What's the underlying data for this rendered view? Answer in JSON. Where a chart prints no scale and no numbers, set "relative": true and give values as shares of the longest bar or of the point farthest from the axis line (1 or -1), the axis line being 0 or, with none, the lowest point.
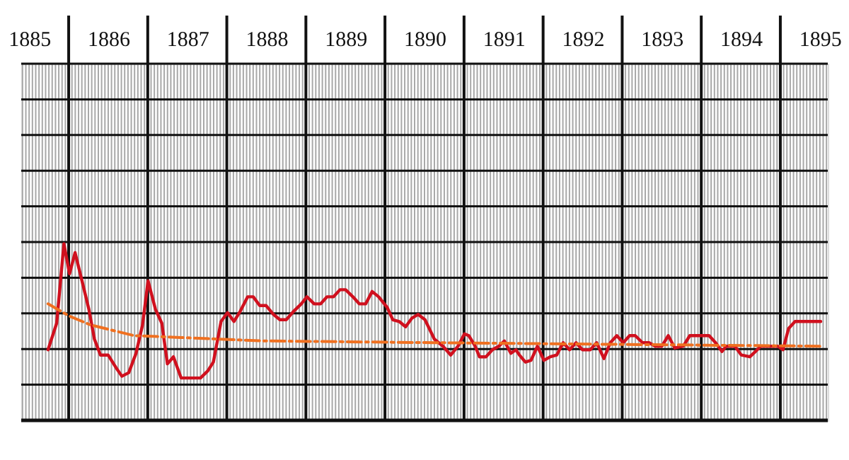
{
  "chart_data": {
    "type": "line",
    "relative": true,
    "grid": true,
    "marker": "none",
    "tick_labels": "x",
    "xlim": [
      1885.4,
      1895.6
    ],
    "xticks": [
      {
        "value": 1885.5,
        "label": "1885"
      },
      {
        "value": 1886.5,
        "label": "1886"
      },
      {
        "value": 1887.5,
        "label": "1887"
      },
      {
        "value": 1888.5,
        "label": "1888"
      },
      {
        "value": 1889.5,
        "label": "1889"
      },
      {
        "value": 1890.5,
        "label": "1890"
      },
      {
        "value": 1891.5,
        "label": "1891"
      },
      {
        "value": 1892.5,
        "label": "1892"
      },
      {
        "value": 1893.5,
        "label": "1893"
      },
      {
        "value": 1894.5,
        "label": "1894"
      },
      {
        "value": 1895.5,
        "label": "1895"
      },
      {
        "value": 1886,
        "label": null
      },
      {
        "value": 1887,
        "label": null
      },
      {
        "value": 1888,
        "label": null
      },
      {
        "value": 1889,
        "label": null
      },
      {
        "value": 1890,
        "label": null
      },
      {
        "value": 1891,
        "label": null
      },
      {
        "value": 1892,
        "label": null
      },
      {
        "value": 1893,
        "label": null
      },
      {
        "value": 1894,
        "label": null
      },
      {
        "value": 1895,
        "label": null
      }
    ],
    "series": [
      {
        "color": "#d0101e",
        "line_style": "solid",
        "x": [
          1885.739,
          1885.848,
          1885.94,
          1886.011,
          1886.081,
          1886.174,
          1886.255,
          1886.326,
          1886.402,
          1886.499,
          1886.597,
          1886.673,
          1886.76,
          1886.852,
          1886.934,
          1887.004,
          1887.097,
          1887.178,
          1887.249,
          1887.325,
          1887.422,
          1887.667,
          1887.759,
          1887.83,
          1887.927,
          1888.009,
          1888.09,
          1888.172,
          1888.264,
          1888.334,
          1888.416,
          1888.497,
          1888.59,
          1888.671,
          1888.752,
          1888.85,
          1888.942,
          1889.013,
          1889.105,
          1889.187,
          1889.268,
          1889.35,
          1889.431,
          1889.502,
          1889.594,
          1889.675,
          1889.757,
          1889.838,
          1889.92,
          1890.028,
          1890.099,
          1890.18,
          1890.261,
          1890.343,
          1890.419,
          1890.506,
          1890.625,
          1890.734,
          1890.832,
          1890.924,
          1891.005,
          1891.06,
          1891.141,
          1891.195,
          1891.277,
          1891.358,
          1891.44,
          1891.51,
          1891.592,
          1891.657,
          1891.7,
          1891.776,
          1891.847,
          1891.928,
          1892.01,
          1892.091,
          1892.172,
          1892.254,
          1892.335,
          1892.417,
          1892.498,
          1892.596,
          1892.677,
          1892.769,
          1892.85,
          1892.932,
          1893.013,
          1893.094,
          1893.165,
          1893.257,
          1893.339,
          1893.42,
          1893.502,
          1893.583,
          1893.665,
          1893.773,
          1893.855,
          1894.099,
          1894.181,
          1894.262,
          1894.316,
          1894.425,
          1894.507,
          1894.615,
          1894.686,
          1894.751,
          1894.969,
          1895.034,
          1895.104,
          1895.186,
          1895.511
        ],
        "values": [
          0.4,
          0.55,
          1.0,
          0.83,
          0.95,
          0.78,
          0.63,
          0.46,
          0.37,
          0.37,
          0.3,
          0.25,
          0.27,
          0.38,
          0.54,
          0.79,
          0.63,
          0.55,
          0.32,
          0.36,
          0.24,
          0.24,
          0.28,
          0.33,
          0.56,
          0.61,
          0.56,
          0.62,
          0.7,
          0.7,
          0.65,
          0.65,
          0.6,
          0.57,
          0.57,
          0.62,
          0.66,
          0.7,
          0.66,
          0.66,
          0.7,
          0.7,
          0.74,
          0.74,
          0.7,
          0.66,
          0.66,
          0.73,
          0.7,
          0.64,
          0.57,
          0.56,
          0.53,
          0.58,
          0.6,
          0.57,
          0.46,
          0.42,
          0.37,
          0.42,
          0.49,
          0.48,
          0.42,
          0.36,
          0.36,
          0.4,
          0.42,
          0.45,
          0.38,
          0.4,
          0.37,
          0.33,
          0.34,
          0.42,
          0.34,
          0.36,
          0.37,
          0.44,
          0.4,
          0.44,
          0.4,
          0.4,
          0.44,
          0.35,
          0.44,
          0.48,
          0.44,
          0.48,
          0.48,
          0.44,
          0.44,
          0.42,
          0.42,
          0.48,
          0.41,
          0.42,
          0.48,
          0.48,
          0.44,
          0.39,
          0.42,
          0.42,
          0.37,
          0.36,
          0.39,
          0.42,
          0.42,
          0.4,
          0.52,
          0.56,
          0.56
        ]
      },
      {
        "color": "#f07020",
        "line_style": "dashed",
        "x": [
          1885.739,
          1886.011,
          1886.282,
          1886.554,
          1886.825,
          1887.368,
          1887.911,
          1888.454,
          1890.625,
          1895.511
        ],
        "values": [
          0.66,
          0.59,
          0.54,
          0.51,
          0.48,
          0.47,
          0.46,
          0.45,
          0.44,
          0.42
        ]
      }
    ]
  }
}
